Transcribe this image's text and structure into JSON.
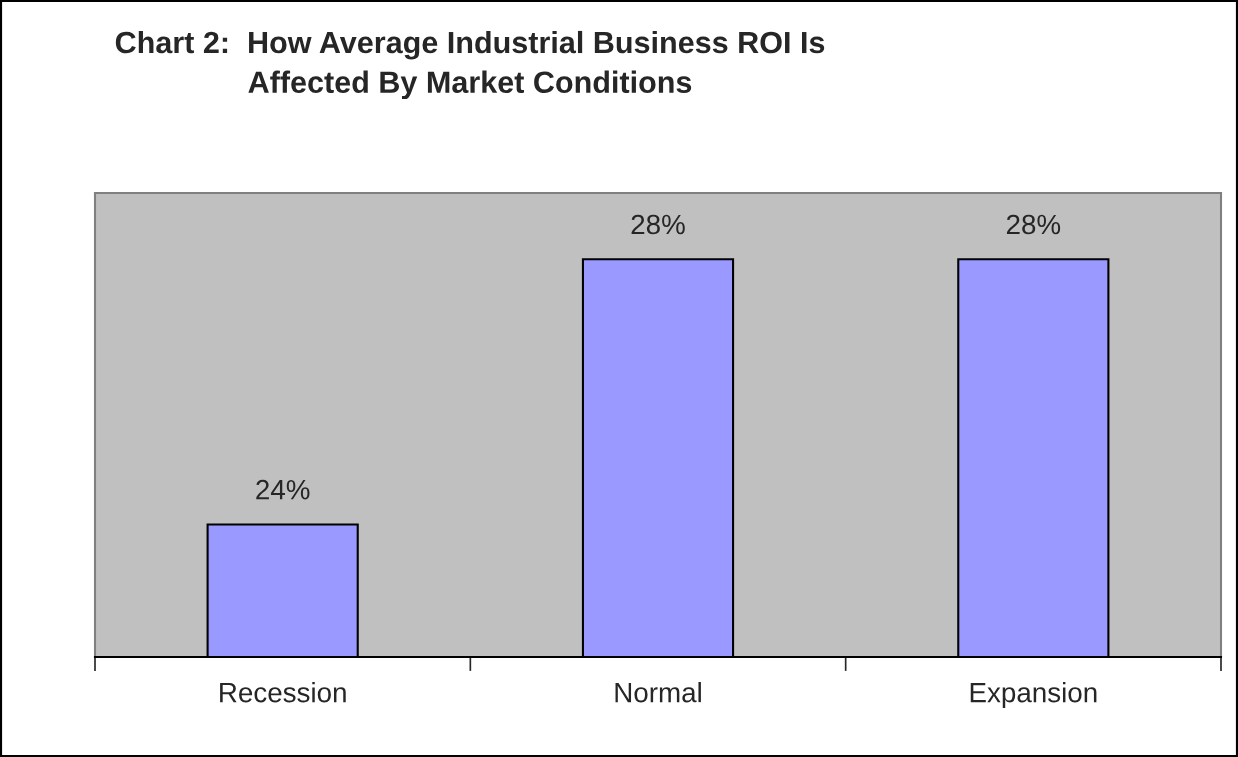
{
  "chart_data": {
    "type": "bar",
    "title": "Chart 2:  How Average Industrial Business ROI Is\nAffected By Market Conditions",
    "categories": [
      "Recession",
      "Normal",
      "Expansion"
    ],
    "values": [
      24,
      28,
      28
    ],
    "value_labels": [
      "24%",
      "28%",
      "28%"
    ],
    "color": "#9999ff",
    "ylim": [
      22,
      29
    ],
    "grid": false,
    "legend": false
  }
}
